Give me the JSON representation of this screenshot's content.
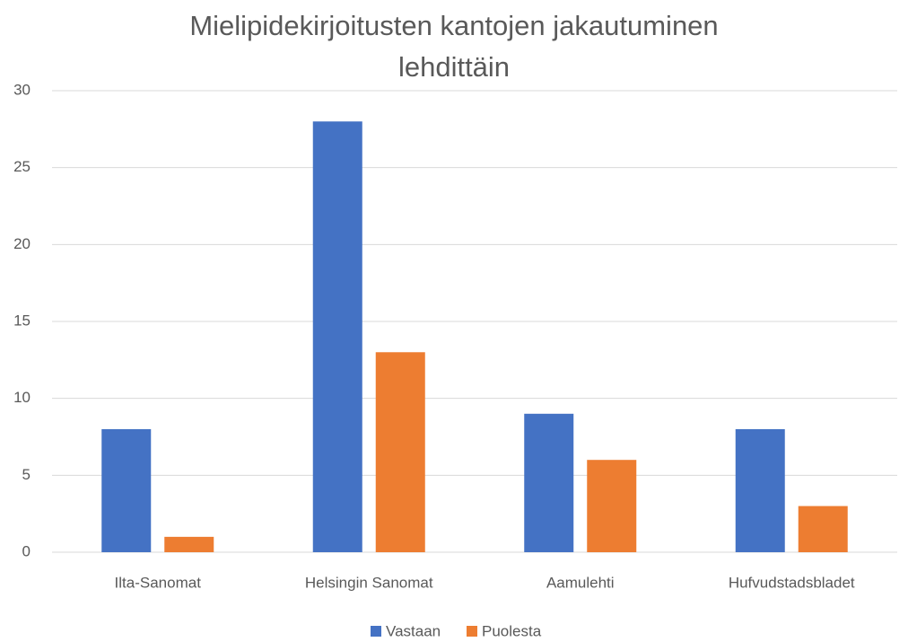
{
  "chart_data": {
    "type": "bar",
    "title": "Mielipidekirjoitusten kantojen jakautuminen lehdittäin",
    "categories": [
      "Ilta-Sanomat",
      "Helsingin Sanomat",
      "Aamulehti",
      "Hufvudstadsbladet"
    ],
    "series": [
      {
        "name": "Vastaan",
        "color": "#4472c4",
        "values": [
          8,
          28,
          9,
          8
        ]
      },
      {
        "name": "Puolesta",
        "color": "#ed7d31",
        "values": [
          1,
          13,
          6,
          3
        ]
      }
    ],
    "ylim": [
      0,
      30
    ],
    "yticks": [
      0,
      5,
      10,
      15,
      20,
      25,
      30
    ],
    "grid": true,
    "legend": "bottom"
  }
}
